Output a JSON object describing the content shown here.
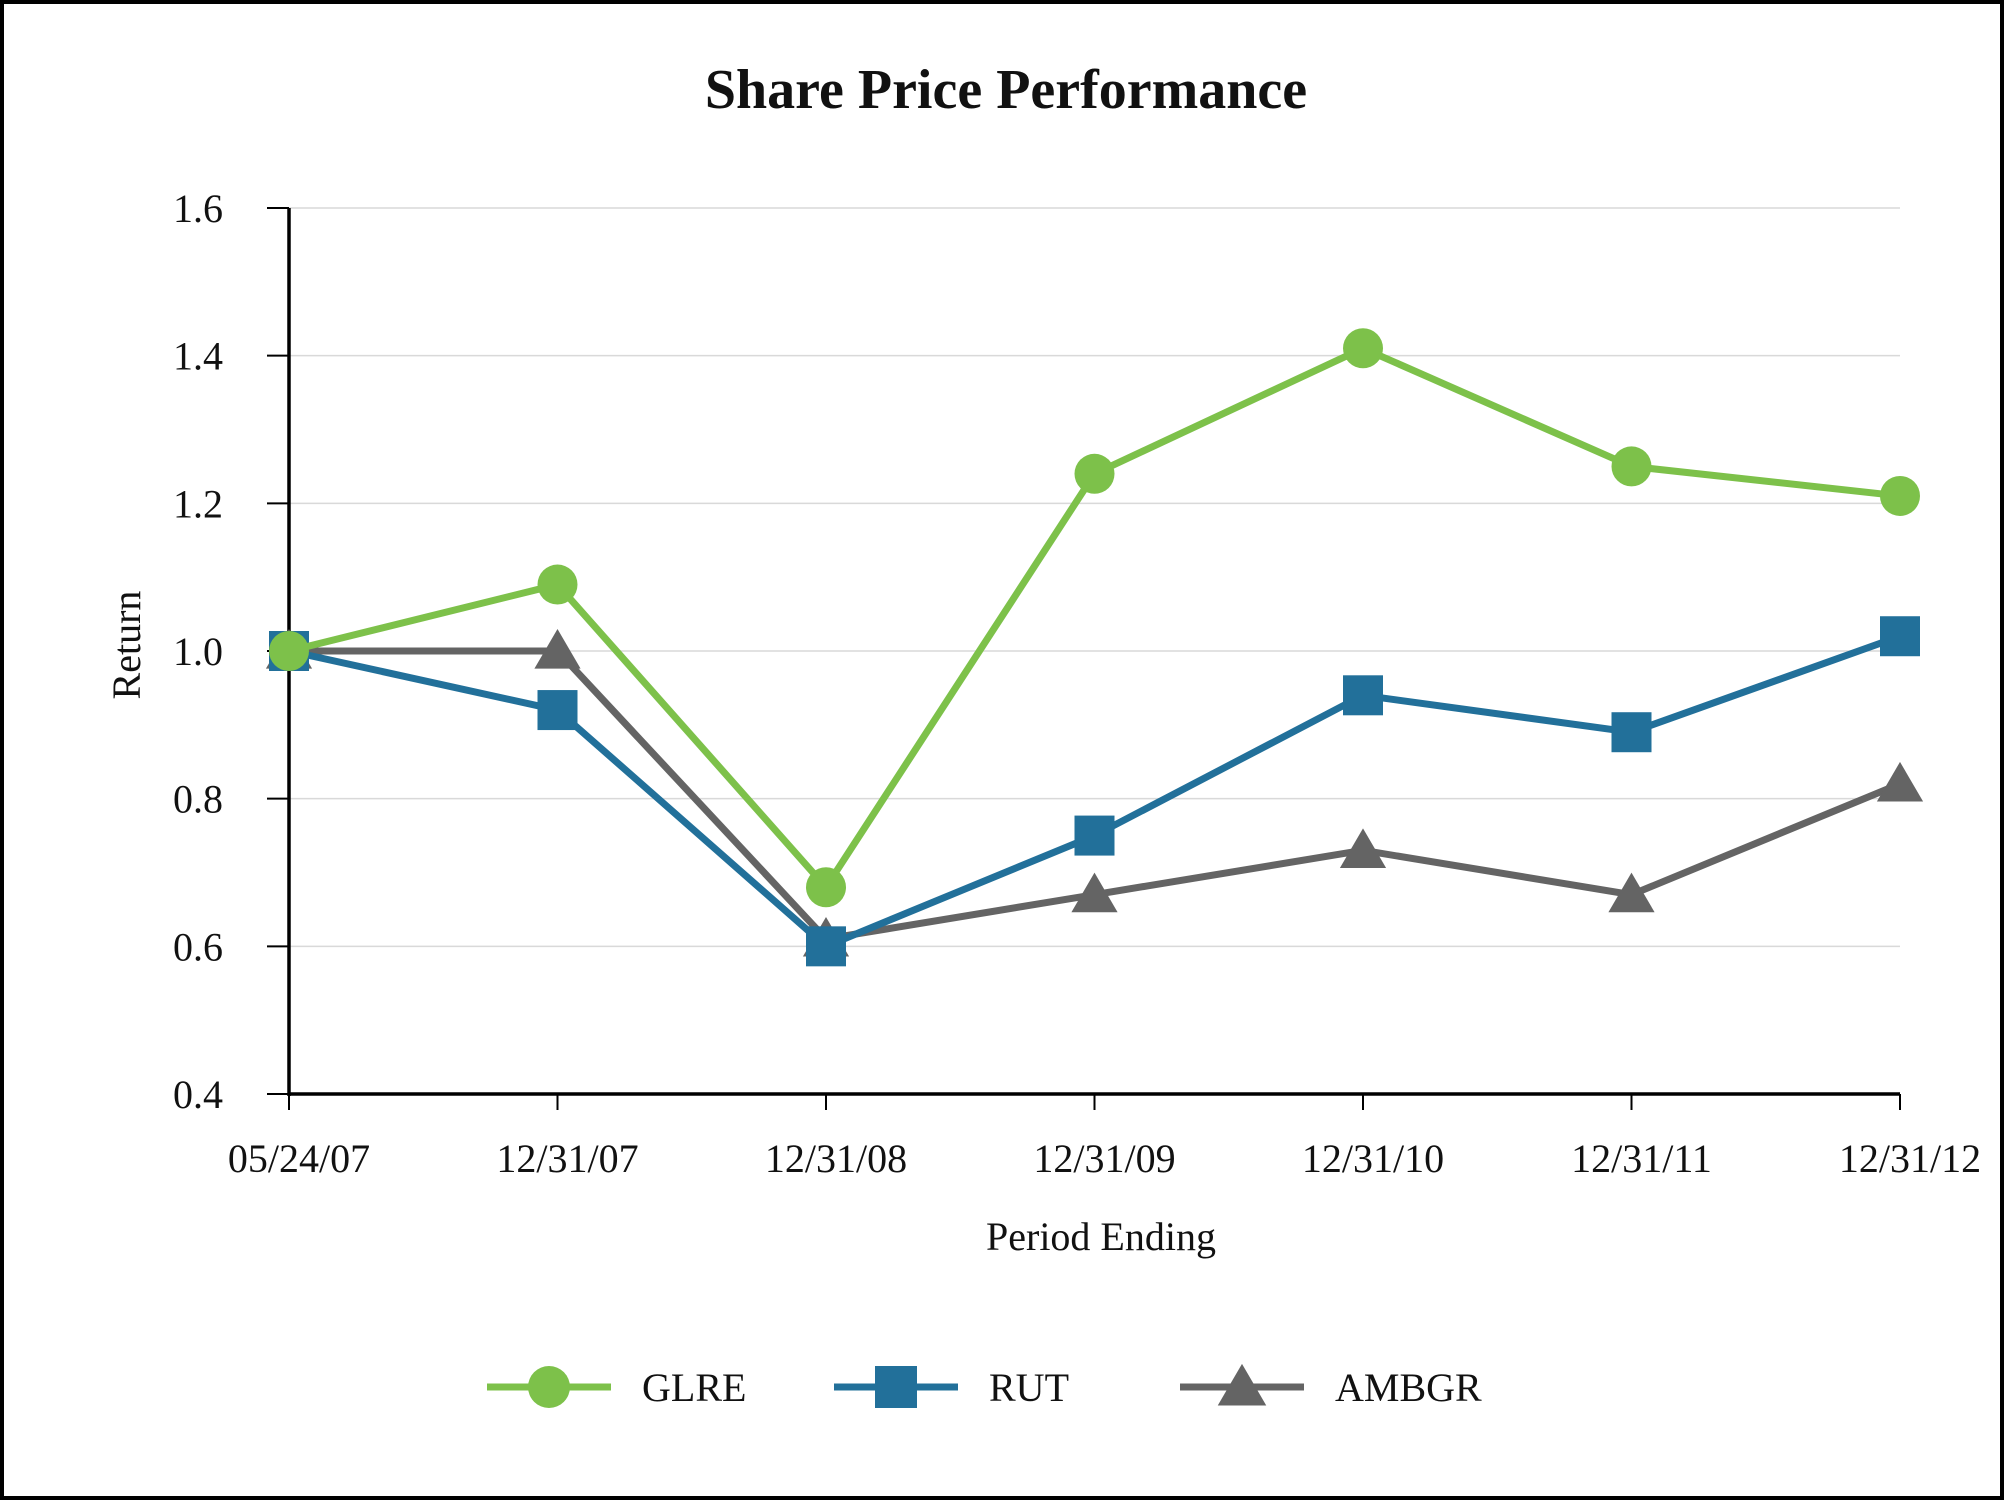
{
  "chart_data": {
    "type": "line",
    "title": "Share Price Performance",
    "xlabel": "Period Ending",
    "ylabel": "Return",
    "categories": [
      "05/24/07",
      "12/31/07",
      "12/31/08",
      "12/31/09",
      "12/31/10",
      "12/31/11",
      "12/31/12"
    ],
    "ylim": [
      0.4,
      1.6
    ],
    "yticks": [
      "0.4",
      "0.6",
      "0.8",
      "1.0",
      "1.2",
      "1.4",
      "1.6"
    ],
    "grid": true,
    "legend_position": "bottom",
    "series": [
      {
        "name": "GLRE",
        "color": "#7dc14a",
        "marker": "circle",
        "values": [
          1.0,
          1.09,
          0.68,
          1.24,
          1.41,
          1.25,
          1.21
        ]
      },
      {
        "name": "RUT",
        "color": "#22709a",
        "marker": "square",
        "values": [
          1.0,
          0.92,
          0.6,
          0.75,
          0.94,
          0.89,
          1.02
        ]
      },
      {
        "name": "AMBGR",
        "color": "#646464",
        "marker": "triangle",
        "values": [
          1.0,
          1.0,
          0.61,
          0.67,
          0.73,
          0.67,
          0.82
        ]
      }
    ]
  }
}
